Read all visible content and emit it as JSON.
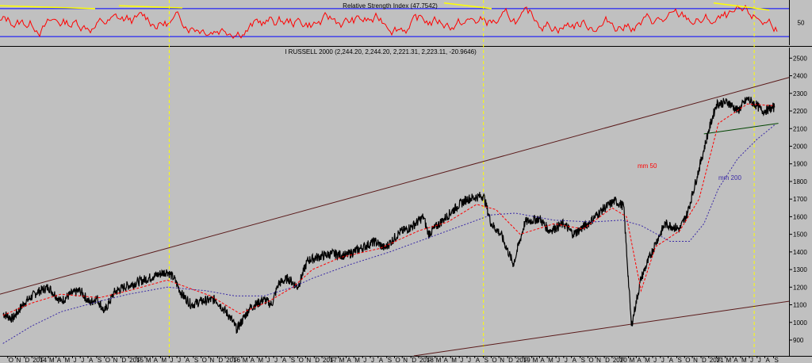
{
  "chart_data": [
    {
      "type": "line",
      "title": "Relative Strength Index (47.7542)",
      "yticks": [
        50
      ],
      "levels": [
        70,
        30
      ],
      "ylim": [
        20,
        80
      ],
      "level_color": "#0000ff",
      "line_color": "#ff0000",
      "trendline_color": "#ffff00",
      "grid": false
    },
    {
      "type": "line",
      "title": "I RUSSELL 2000 (2,244.20, 2,244.20, 2,221.31, 2,223.11, -20.9646)",
      "ylim": [
        810,
        2560
      ],
      "yticks": [
        900,
        1000,
        1100,
        1200,
        1300,
        1400,
        1500,
        1600,
        1700,
        1800,
        1900,
        2000,
        2100,
        2200,
        2300,
        2400,
        2500
      ],
      "xlim": [
        2013.67,
        2021.83
      ],
      "date_labels": [
        {
          "t": 2013.75,
          "label": "O"
        },
        {
          "t": 2013.83,
          "label": "N"
        },
        {
          "t": 2013.92,
          "label": "D"
        },
        {
          "t": 2014.0,
          "label": "2014"
        },
        {
          "t": 2014.08,
          "label": "F"
        },
        {
          "t": 2014.17,
          "label": "M"
        },
        {
          "t": 2014.25,
          "label": "A"
        },
        {
          "t": 2014.33,
          "label": "M"
        },
        {
          "t": 2014.42,
          "label": "J"
        },
        {
          "t": 2014.5,
          "label": "J"
        },
        {
          "t": 2014.58,
          "label": "A"
        },
        {
          "t": 2014.67,
          "label": "S"
        },
        {
          "t": 2014.75,
          "label": "O"
        },
        {
          "t": 2014.83,
          "label": "N"
        },
        {
          "t": 2014.92,
          "label": "D"
        },
        {
          "t": 2015.0,
          "label": "2015"
        },
        {
          "t": 2015.08,
          "label": "F"
        },
        {
          "t": 2015.17,
          "label": "M"
        },
        {
          "t": 2015.25,
          "label": "A"
        },
        {
          "t": 2015.33,
          "label": "M"
        },
        {
          "t": 2015.42,
          "label": "J"
        },
        {
          "t": 2015.5,
          "label": "J"
        },
        {
          "t": 2015.58,
          "label": "A"
        },
        {
          "t": 2015.67,
          "label": "S"
        },
        {
          "t": 2015.75,
          "label": "O"
        },
        {
          "t": 2015.83,
          "label": "N"
        },
        {
          "t": 2015.92,
          "label": "D"
        },
        {
          "t": 2016.0,
          "label": "2016"
        },
        {
          "t": 2016.08,
          "label": "F"
        },
        {
          "t": 2016.17,
          "label": "M"
        },
        {
          "t": 2016.25,
          "label": "A"
        },
        {
          "t": 2016.33,
          "label": "M"
        },
        {
          "t": 2016.42,
          "label": "J"
        },
        {
          "t": 2016.5,
          "label": "J"
        },
        {
          "t": 2016.58,
          "label": "A"
        },
        {
          "t": 2016.67,
          "label": "S"
        },
        {
          "t": 2016.75,
          "label": "O"
        },
        {
          "t": 2016.83,
          "label": "N"
        },
        {
          "t": 2016.92,
          "label": "D"
        },
        {
          "t": 2017.0,
          "label": "2017"
        },
        {
          "t": 2017.08,
          "label": "F"
        },
        {
          "t": 2017.17,
          "label": "M"
        },
        {
          "t": 2017.25,
          "label": "A"
        },
        {
          "t": 2017.33,
          "label": "M"
        },
        {
          "t": 2017.42,
          "label": "J"
        },
        {
          "t": 2017.5,
          "label": "J"
        },
        {
          "t": 2017.58,
          "label": "A"
        },
        {
          "t": 2017.67,
          "label": "S"
        },
        {
          "t": 2017.75,
          "label": "O"
        },
        {
          "t": 2017.83,
          "label": "N"
        },
        {
          "t": 2017.92,
          "label": "D"
        },
        {
          "t": 2018.0,
          "label": "2018"
        },
        {
          "t": 2018.08,
          "label": "F"
        },
        {
          "t": 2018.17,
          "label": "M"
        },
        {
          "t": 2018.25,
          "label": "A"
        },
        {
          "t": 2018.33,
          "label": "M"
        },
        {
          "t": 2018.42,
          "label": "J"
        },
        {
          "t": 2018.5,
          "label": "J"
        },
        {
          "t": 2018.58,
          "label": "A"
        },
        {
          "t": 2018.67,
          "label": "S"
        },
        {
          "t": 2018.75,
          "label": "O"
        },
        {
          "t": 2018.83,
          "label": "N"
        },
        {
          "t": 2018.92,
          "label": "D"
        },
        {
          "t": 2019.0,
          "label": "2019"
        },
        {
          "t": 2019.08,
          "label": "F"
        },
        {
          "t": 2019.17,
          "label": "M"
        },
        {
          "t": 2019.25,
          "label": "A"
        },
        {
          "t": 2019.33,
          "label": "M"
        },
        {
          "t": 2019.42,
          "label": "J"
        },
        {
          "t": 2019.5,
          "label": "J"
        },
        {
          "t": 2019.58,
          "label": "A"
        },
        {
          "t": 2019.67,
          "label": "S"
        },
        {
          "t": 2019.75,
          "label": "O"
        },
        {
          "t": 2019.83,
          "label": "N"
        },
        {
          "t": 2019.92,
          "label": "D"
        },
        {
          "t": 2020.0,
          "label": "2020"
        },
        {
          "t": 2020.08,
          "label": "F"
        },
        {
          "t": 2020.17,
          "label": "M"
        },
        {
          "t": 2020.25,
          "label": "A"
        },
        {
          "t": 2020.33,
          "label": "M"
        },
        {
          "t": 2020.42,
          "label": "J"
        },
        {
          "t": 2020.5,
          "label": "J"
        },
        {
          "t": 2020.58,
          "label": "A"
        },
        {
          "t": 2020.67,
          "label": "S"
        },
        {
          "t": 2020.75,
          "label": "O"
        },
        {
          "t": 2020.83,
          "label": "N"
        },
        {
          "t": 2020.92,
          "label": "D"
        },
        {
          "t": 2021.0,
          "label": "2021"
        },
        {
          "t": 2021.08,
          "label": "F"
        },
        {
          "t": 2021.17,
          "label": "M"
        },
        {
          "t": 2021.25,
          "label": "A"
        },
        {
          "t": 2021.33,
          "label": "M"
        },
        {
          "t": 2021.42,
          "label": "J"
        },
        {
          "t": 2021.5,
          "label": "J"
        },
        {
          "t": 2021.58,
          "label": "A"
        },
        {
          "t": 2021.67,
          "label": "S"
        }
      ],
      "series": [
        {
          "role": "price",
          "color": "#000000",
          "x": [
            2013.7,
            2013.8,
            2013.92,
            2014.05,
            2014.17,
            2014.3,
            2014.4,
            2014.5,
            2014.6,
            2014.67,
            2014.75,
            2014.85,
            2014.95,
            2015.1,
            2015.25,
            2015.4,
            2015.47,
            2015.55,
            2015.65,
            2015.75,
            2015.9,
            2016.05,
            2016.12,
            2016.25,
            2016.4,
            2016.48,
            2016.55,
            2016.65,
            2016.75,
            2016.85,
            2016.95,
            2017.1,
            2017.25,
            2017.4,
            2017.55,
            2017.65,
            2017.8,
            2017.92,
            2018.05,
            2018.1,
            2018.25,
            2018.4,
            2018.5,
            2018.67,
            2018.75,
            2018.85,
            2018.98,
            2019.1,
            2019.25,
            2019.35,
            2019.5,
            2019.6,
            2019.75,
            2019.9,
            2020.03,
            2020.12,
            2020.2,
            2020.3,
            2020.45,
            2020.55,
            2020.7,
            2020.78,
            2020.88,
            2021.0,
            2021.08,
            2021.2,
            2021.3,
            2021.4,
            2021.5,
            2021.55,
            2021.62,
            2021.68
          ],
          "y": [
            1050,
            1020,
            1110,
            1170,
            1200,
            1120,
            1160,
            1180,
            1110,
            1140,
            1060,
            1170,
            1200,
            1230,
            1260,
            1290,
            1250,
            1160,
            1100,
            1120,
            1130,
            1030,
            960,
            1080,
            1130,
            1100,
            1220,
            1250,
            1200,
            1350,
            1370,
            1390,
            1380,
            1420,
            1460,
            1420,
            1510,
            1540,
            1600,
            1500,
            1580,
            1660,
            1700,
            1720,
            1560,
            1500,
            1330,
            1570,
            1590,
            1520,
            1560,
            1500,
            1560,
            1640,
            1690,
            1660,
            980,
            1250,
            1450,
            1560,
            1530,
            1620,
            1830,
            2090,
            2240,
            2250,
            2200,
            2270,
            2230,
            2200,
            2210,
            2220
          ]
        },
        {
          "role": "ma50",
          "name": "mm 50",
          "color": "#ff0000",
          "x": [
            2013.7,
            2014.0,
            2014.3,
            2014.7,
            2015.0,
            2015.4,
            2015.6,
            2015.85,
            2016.15,
            2016.45,
            2016.7,
            2016.9,
            2017.2,
            2017.6,
            2018.0,
            2018.3,
            2018.6,
            2018.8,
            2019.05,
            2019.4,
            2019.7,
            2020.0,
            2020.15,
            2020.3,
            2020.45,
            2020.7,
            2020.9,
            2021.1,
            2021.4,
            2021.68
          ],
          "y": [
            1040,
            1110,
            1160,
            1140,
            1180,
            1240,
            1200,
            1150,
            1050,
            1120,
            1200,
            1300,
            1370,
            1420,
            1520,
            1570,
            1670,
            1640,
            1500,
            1560,
            1530,
            1650,
            1600,
            1180,
            1430,
            1520,
            1700,
            2130,
            2240,
            2230
          ]
        },
        {
          "role": "ma200",
          "name": "mm 200",
          "color": "#3a2aa6",
          "x": [
            2013.7,
            2014.0,
            2014.3,
            2014.7,
            2015.0,
            2015.4,
            2015.8,
            2016.1,
            2016.4,
            2016.7,
            2016.9,
            2017.3,
            2017.7,
            2018.1,
            2018.5,
            2018.75,
            2019.0,
            2019.4,
            2019.8,
            2020.1,
            2020.3,
            2020.6,
            2020.8,
            2020.95,
            2021.1,
            2021.3,
            2021.5,
            2021.68
          ],
          "y": [
            880,
            980,
            1060,
            1120,
            1160,
            1200,
            1180,
            1150,
            1150,
            1200,
            1250,
            1330,
            1400,
            1480,
            1560,
            1610,
            1620,
            1580,
            1570,
            1580,
            1550,
            1460,
            1460,
            1560,
            1760,
            1930,
            2040,
            2120
          ]
        }
      ],
      "trendlines": [
        {
          "color": "#5a1a1a",
          "x": [
            2013.67,
            2021.83
          ],
          "y": [
            1160,
            2390
          ]
        },
        {
          "color": "#5a1a1a",
          "x": [
            2017.95,
            2021.83
          ],
          "y": [
            810,
            1120
          ]
        },
        {
          "color": "#004400",
          "x": [
            2020.95,
            2021.72
          ],
          "y": [
            2070,
            2130
          ]
        }
      ],
      "vlines": {
        "color": "#ffff00",
        "x": [
          2015.42,
          2018.67,
          2021.47
        ]
      },
      "grid": false
    }
  ]
}
